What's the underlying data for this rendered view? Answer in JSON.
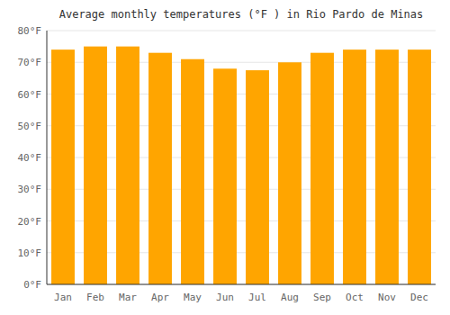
{
  "chart_data": {
    "type": "bar",
    "title": "Average monthly temperatures (°F ) in Rio Pardo de Minas",
    "categories": [
      "Jan",
      "Feb",
      "Mar",
      "Apr",
      "May",
      "Jun",
      "Jul",
      "Aug",
      "Sep",
      "Oct",
      "Nov",
      "Dec"
    ],
    "values": [
      74,
      75,
      75,
      73,
      71,
      68,
      67.5,
      70,
      73,
      74,
      74,
      74
    ],
    "color": "#FFA500",
    "ylim": [
      0,
      80
    ],
    "yticks": [
      {
        "value": 0,
        "label": "0°F"
      },
      {
        "value": 10,
        "label": "10°F"
      },
      {
        "value": 20,
        "label": "20°F"
      },
      {
        "value": 30,
        "label": "30°F"
      },
      {
        "value": 40,
        "label": "40°F"
      },
      {
        "value": 50,
        "label": "50°F"
      },
      {
        "value": 60,
        "label": "60°F"
      },
      {
        "value": 70,
        "label": "70°F"
      },
      {
        "value": 80,
        "label": "80°F"
      }
    ],
    "grid": true
  }
}
